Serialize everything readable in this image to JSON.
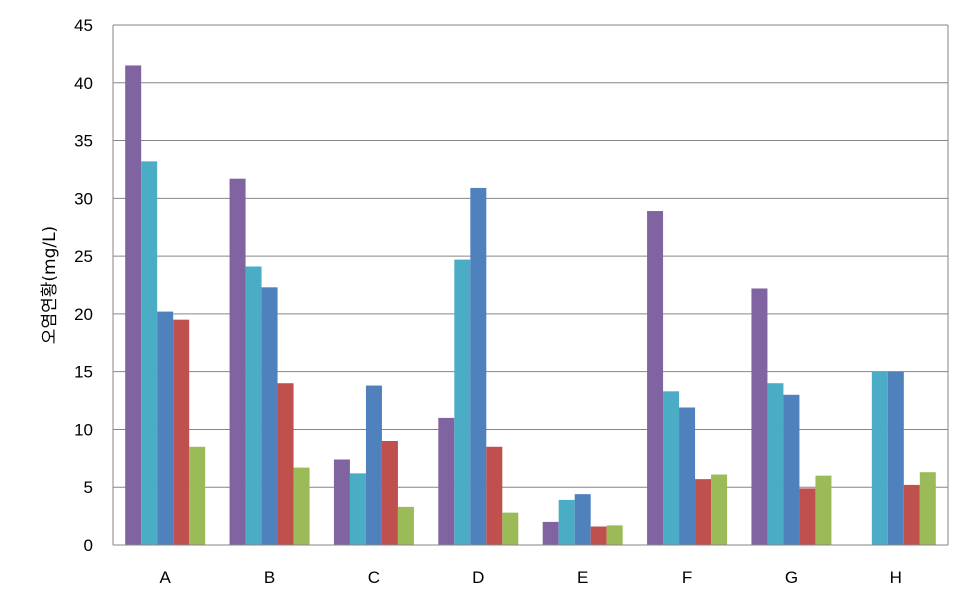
{
  "chart_data": {
    "type": "bar",
    "title": "",
    "xlabel": "",
    "ylabel": "오염연황(mg/L)",
    "ylim": [
      0,
      45
    ],
    "yticks": [
      0,
      5,
      10,
      15,
      20,
      25,
      30,
      35,
      40,
      45
    ],
    "grid": true,
    "legend": "none",
    "categories": [
      "A",
      "B",
      "C",
      "D",
      "E",
      "F",
      "G",
      "H"
    ],
    "series": [
      {
        "color": "#8064A2",
        "values": [
          41.5,
          31.7,
          7.4,
          11.0,
          2.0,
          28.9,
          22.2,
          0
        ]
      },
      {
        "color": "#4BACC6",
        "values": [
          33.2,
          24.1,
          6.2,
          24.7,
          3.9,
          13.3,
          14.0,
          15.0
        ]
      },
      {
        "color": "#4F81BD",
        "values": [
          20.2,
          22.3,
          13.8,
          30.9,
          4.4,
          11.9,
          13.0,
          15.0
        ]
      },
      {
        "color": "#C0504D",
        "values": [
          19.5,
          14.0,
          9.0,
          8.5,
          1.6,
          5.7,
          4.9,
          5.2
        ]
      },
      {
        "color": "#9BBB59",
        "values": [
          8.5,
          6.7,
          3.3,
          2.8,
          1.7,
          6.1,
          6.0,
          6.3
        ]
      }
    ]
  }
}
